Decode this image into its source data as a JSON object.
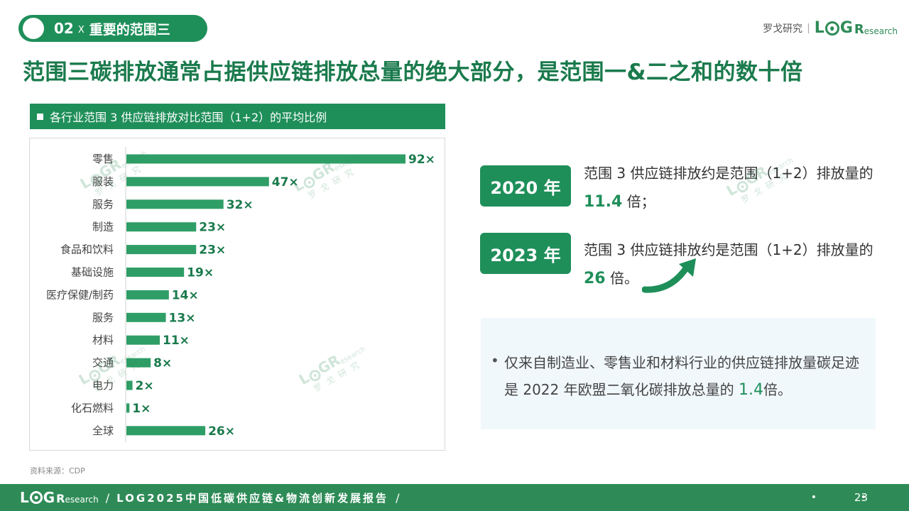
{
  "section": {
    "number": "02",
    "x": "X",
    "title": "重要的范围三"
  },
  "brand": {
    "cn": "罗戈研究",
    "sep": "|",
    "logo_l": "L",
    "logo_g": "G",
    "logo_r": "R",
    "logo_suffix": "esearch"
  },
  "headline": "范围三碳排放通常占据供应链排放总量的绝大部分，是范围一&二之和的数十倍",
  "chart_title": "各行业范围 3 供应链排放对比范围（1+2）的平均比例",
  "chart_data": {
    "type": "bar",
    "orientation": "horizontal",
    "categories": [
      "零售",
      "服装",
      "服务",
      "制造",
      "食品和饮料",
      "基础设施",
      "医疗保健/制药",
      "服务",
      "材料",
      "交通",
      "电力",
      "化石燃料",
      "全球"
    ],
    "values": [
      92,
      47,
      32,
      23,
      23,
      19,
      14,
      13,
      11,
      8,
      2,
      1,
      26
    ],
    "labels": [
      "92×",
      "47×",
      "32×",
      "23×",
      "23×",
      "19×",
      "14×",
      "13×",
      "11×",
      "8×",
      "2×",
      "1×",
      "26×"
    ],
    "xlim": [
      0,
      92
    ],
    "bar_color": "#2e9e66",
    "label_color": "#1a7a4c"
  },
  "source": "资料来源：CDP",
  "stats": [
    {
      "year": "2020 年",
      "text_pre": "范围 3 供应链排放约是范围（1+2）排放量的 ",
      "value": "11.4",
      "text_post": " 倍；"
    },
    {
      "year": "2023 年",
      "text_pre": "范围 3 供应链排放约是范围（1+2）排放量的 ",
      "value": "26",
      "text_post": " 倍。"
    }
  ],
  "note": {
    "bullet": "•",
    "text_pre": "仅来自制造业、零售业和材料行业的供应链排放量碳足迹是 2022 年欧盟二氧化碳排放总量的 ",
    "value": "1.4",
    "text_post": "倍。"
  },
  "footer": {
    "slash": "/",
    "report": "LOG2025中国低碳供应链&物流创新发展报告",
    "page": "23",
    "dot": "•"
  },
  "colors": {
    "primary": "#1f8f5a",
    "footer": "#2e8b57",
    "note_bg": "#f1f8fc"
  }
}
